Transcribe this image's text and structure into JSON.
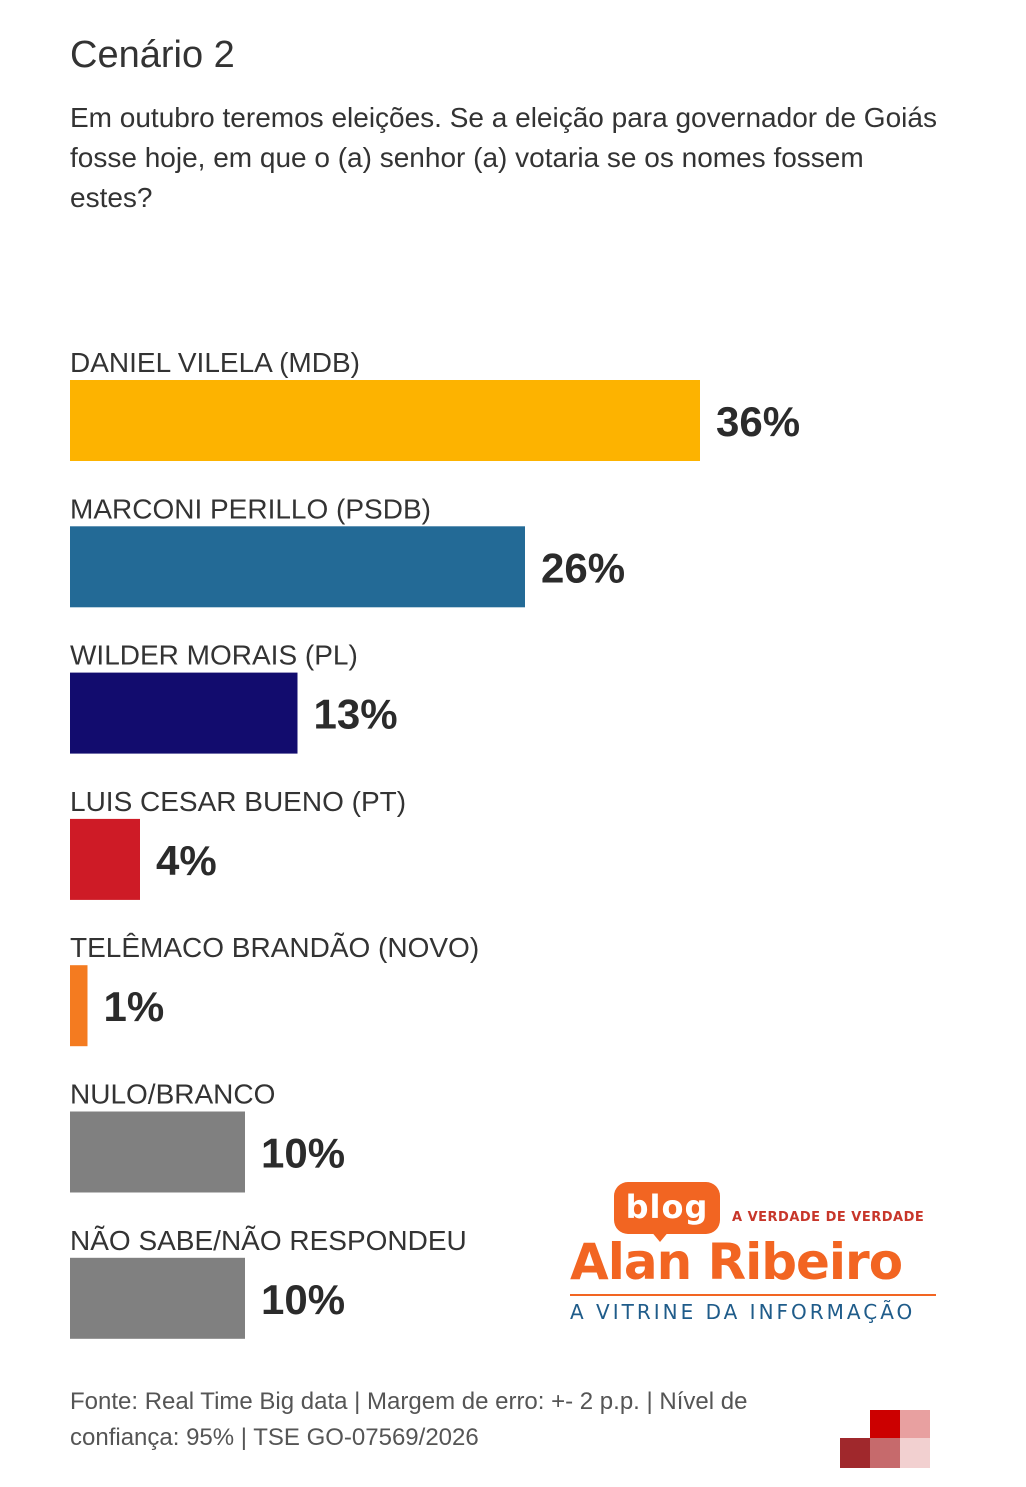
{
  "header": {
    "title": "Cenário 2",
    "subtitle": "Em outubro teremos eleições. Se a eleição para governador de Goiás fosse hoje, em que o (a) senhor (a) votaria se os nomes fossem estes?"
  },
  "chart_data": {
    "type": "bar",
    "orientation": "horizontal",
    "title": "Cenário 2",
    "categories": [
      "DANIEL VILELA (MDB)",
      "MARCONI PERILLO (PSDB)",
      "WILDER MORAIS (PL)",
      "LUIS CESAR BUENO (PT)",
      "TELÊMACO BRANDÃO (NOVO)",
      "NULO/BRANCO",
      "NÃO SABE/NÃO RESPONDEU"
    ],
    "values": [
      36,
      26,
      13,
      4,
      1,
      10,
      10
    ],
    "value_labels": [
      "36%",
      "26%",
      "13%",
      "4%",
      "1%",
      "10%",
      "10%"
    ],
    "colors": [
      "#FDB300",
      "#236A96",
      "#120C6E",
      "#CE1B26",
      "#F47B20",
      "#808080",
      "#808080"
    ],
    "unit": "%",
    "grid": false,
    "legend": "none"
  },
  "branding": {
    "blog": "blog",
    "tagline": "A VERDADE DE VERDADE",
    "name": "Alan Ribeiro",
    "motto": "A VITRINE DA INFORMAÇÃO"
  },
  "footer": {
    "source": "Fonte: Real Time Big data | Margem de erro: +- 2 p.p. | Nível de confiança: 95% | TSE GO-07569/2026"
  }
}
